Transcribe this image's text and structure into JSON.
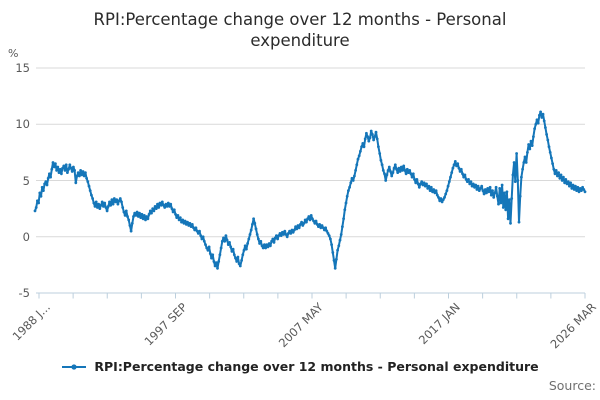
{
  "title": "RPI:Percentage change over 12 months - Personal expenditure",
  "y_axis": {
    "unit": "%"
  },
  "legend": {
    "label": "RPI:Percentage change over 12 months - Personal expenditure"
  },
  "source": {
    "label": "Source:"
  },
  "colors": {
    "line": "#1576b9",
    "grid": "#d9d9d9",
    "axis": "#bccfdd",
    "tick_text": "#595959",
    "title_text": "#2b2b2b"
  },
  "chart_data": {
    "type": "line",
    "title": "RPI:Percentage change over 12 months - Personal expenditure",
    "ylabel": "%",
    "ylim": [
      -5,
      15
    ],
    "y_ticks": [
      15,
      10,
      5,
      0,
      -5
    ],
    "grid": true,
    "legend_position": "bottom",
    "x_tick_count": 17,
    "x_tick_labels": [
      {
        "i": 0,
        "label": "1988 J..."
      },
      {
        "i": 4,
        "label": "1997 SEP"
      },
      {
        "i": 8,
        "label": "2007 MAY"
      },
      {
        "i": 12,
        "label": "2017 JAN"
      },
      {
        "i": 16,
        "label": "2026 MAR"
      }
    ],
    "start": "1988 JAN",
    "end": "2026 MAR",
    "frequency": "monthly",
    "series": [
      {
        "name": "RPI:Percentage change over 12 months - Personal expenditure",
        "values": [
          2.3,
          2.6,
          3.2,
          3.0,
          3.9,
          3.6,
          4.4,
          4.1,
          4.7,
          4.9,
          4.6,
          5.2,
          5.6,
          5.3,
          6.0,
          6.6,
          6.2,
          6.5,
          5.9,
          6.2,
          5.7,
          6.0,
          5.6,
          6.1,
          6.3,
          5.9,
          6.4,
          5.7,
          6.0,
          6.4,
          6.1,
          5.8,
          6.2,
          5.9,
          4.8,
          5.4,
          5.7,
          5.4,
          5.9,
          5.5,
          5.8,
          5.4,
          5.7,
          5.2,
          4.9,
          4.5,
          4.1,
          3.7,
          3.4,
          3.0,
          2.7,
          3.1,
          2.6,
          2.9,
          2.5,
          2.8,
          3.1,
          2.7,
          3.0,
          2.6,
          2.3,
          2.7,
          3.1,
          2.8,
          3.3,
          2.9,
          3.4,
          3.1,
          3.3,
          2.9,
          3.2,
          3.4,
          3.1,
          2.6,
          2.2,
          1.9,
          2.3,
          1.8,
          1.5,
          1.0,
          0.5,
          1.2,
          1.8,
          2.1,
          1.9,
          2.2,
          1.8,
          2.1,
          1.7,
          2.0,
          1.6,
          1.9,
          1.5,
          1.8,
          1.6,
          2.0,
          2.3,
          2.1,
          2.5,
          2.3,
          2.7,
          2.5,
          2.9,
          2.6,
          3.0,
          2.8,
          3.1,
          2.8,
          2.6,
          2.9,
          2.7,
          3.0,
          2.7,
          2.9,
          2.5,
          2.2,
          2.4,
          2.0,
          1.7,
          1.9,
          1.5,
          1.7,
          1.3,
          1.5,
          1.2,
          1.4,
          1.1,
          1.3,
          1.0,
          1.2,
          0.9,
          1.1,
          0.8,
          0.6,
          0.8,
          0.5,
          0.3,
          0.5,
          0.1,
          -0.2,
          0.0,
          -0.4,
          -0.7,
          -1.0,
          -1.2,
          -0.9,
          -1.5,
          -1.9,
          -1.6,
          -2.2,
          -2.6,
          -2.3,
          -2.8,
          -2.2,
          -1.6,
          -1.0,
          -0.4,
          -0.1,
          -0.4,
          0.1,
          -0.3,
          -0.7,
          -0.5,
          -0.9,
          -1.3,
          -1.1,
          -1.6,
          -1.9,
          -2.2,
          -1.8,
          -2.4,
          -2.6,
          -2.1,
          -1.6,
          -1.2,
          -0.8,
          -1.1,
          -0.6,
          -0.2,
          0.2,
          0.6,
          1.1,
          1.6,
          1.2,
          0.7,
          0.2,
          -0.2,
          -0.6,
          -0.4,
          -0.8,
          -1.0,
          -0.7,
          -1.0,
          -0.7,
          -0.9,
          -0.6,
          -0.8,
          -0.4,
          -0.2,
          -0.5,
          -0.1,
          0.1,
          -0.2,
          0.1,
          0.3,
          0.1,
          0.4,
          0.2,
          0.5,
          0.2,
          0.0,
          0.3,
          0.5,
          0.3,
          0.6,
          0.4,
          0.6,
          0.9,
          0.7,
          1.0,
          0.8,
          1.1,
          1.3,
          1.0,
          1.2,
          1.5,
          1.3,
          1.6,
          1.8,
          1.5,
          1.9,
          1.6,
          1.4,
          1.2,
          1.4,
          1.1,
          0.9,
          1.1,
          0.8,
          1.0,
          0.8,
          0.6,
          0.8,
          0.5,
          0.3,
          0.1,
          -0.2,
          -0.7,
          -1.4,
          -2.1,
          -2.8,
          -2.0,
          -1.2,
          -0.8,
          -0.3,
          0.2,
          0.9,
          1.6,
          2.4,
          3.0,
          3.6,
          4.1,
          4.4,
          4.8,
          5.2,
          5.0,
          5.4,
          5.9,
          6.4,
          6.9,
          7.2,
          7.6,
          8.0,
          8.3,
          8.0,
          8.7,
          9.2,
          8.9,
          8.5,
          8.8,
          9.4,
          9.1,
          8.6,
          8.9,
          9.3,
          8.7,
          8.0,
          7.4,
          6.8,
          6.4,
          5.9,
          5.6,
          5.0,
          5.5,
          5.9,
          6.2,
          5.8,
          5.4,
          5.7,
          6.1,
          6.4,
          6.0,
          5.7,
          6.1,
          5.8,
          6.2,
          5.9,
          6.3,
          5.9,
          5.6,
          6.0,
          5.7,
          5.9,
          5.6,
          5.3,
          5.6,
          5.1,
          4.8,
          5.1,
          4.7,
          4.4,
          4.7,
          4.9,
          4.6,
          4.8,
          4.5,
          4.7,
          4.3,
          4.5,
          4.1,
          4.4,
          4.0,
          4.2,
          3.9,
          4.1,
          3.7,
          3.5,
          3.2,
          3.4,
          3.1,
          3.3,
          3.5,
          3.8,
          4.1,
          4.5,
          4.9,
          5.3,
          5.7,
          6.1,
          6.4,
          6.7,
          6.3,
          6.5,
          6.1,
          5.8,
          6.0,
          5.6,
          5.3,
          5.5,
          5.1,
          4.9,
          5.1,
          4.7,
          4.9,
          4.5,
          4.7,
          4.4,
          4.6,
          4.2,
          4.5,
          4.1,
          4.3,
          4.5,
          4.1,
          3.8,
          4.2,
          3.9,
          4.3,
          4.0,
          4.4,
          3.7,
          4.1,
          3.5,
          3.9,
          4.4,
          3.6,
          2.9,
          4.3,
          3.0,
          4.6,
          2.6,
          3.9,
          2.4,
          4.0,
          1.6,
          3.3,
          1.2,
          3.4,
          5.5,
          6.6,
          4.9,
          7.4,
          5.0,
          1.3,
          3.6,
          5.3,
          6.0,
          6.6,
          7.1,
          6.6,
          7.5,
          8.2,
          7.8,
          8.5,
          8.1,
          8.9,
          9.6,
          10.0,
          10.4,
          10.1,
          10.8,
          11.1,
          10.6,
          10.9,
          10.3,
          9.7,
          9.1,
          8.6,
          8.0,
          7.5,
          7.0,
          6.5,
          6.0,
          5.6,
          5.9,
          5.4,
          5.7,
          5.2,
          5.5,
          5.0,
          5.3,
          4.8,
          5.1,
          4.7,
          4.9,
          4.5,
          4.8,
          4.3,
          4.6,
          4.2,
          4.5,
          4.1,
          4.4,
          4.0,
          4.3,
          4.1,
          4.4,
          4.2,
          4.0
        ]
      }
    ]
  }
}
